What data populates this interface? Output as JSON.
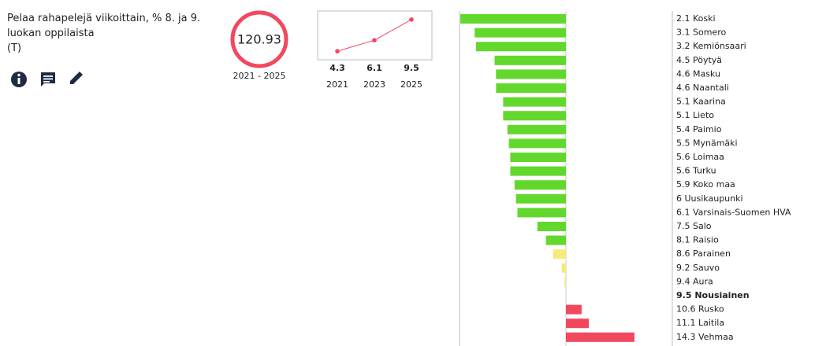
{
  "header": {
    "title": "Pelaa rahapelejä viikoittain, % 8. ja 9. luokan oppilaista",
    "subtitle": "(T)"
  },
  "indicator": {
    "value": 120.93,
    "period": "2021 - 2025",
    "color": "#f2485f"
  },
  "chart_data": [
    {
      "type": "line",
      "categories": [
        "2021",
        "2023",
        "2025"
      ],
      "values": [
        4.3,
        6.1,
        9.5
      ],
      "color": "#f2485f",
      "ylim": [
        2.9,
        10.9
      ]
    },
    {
      "type": "deviation-bar",
      "categories": [
        "Koski",
        "Somero",
        "Kemiönsaari",
        "Pöytyä",
        "Masku",
        "Naantali",
        "Kaarina",
        "Lieto",
        "Paimio",
        "Mynämäki",
        "Loimaa",
        "Turku",
        "Koko maa",
        "Uusikaupunki",
        "Varsinais-Suomen HVA",
        "Salo",
        "Raisio",
        "Parainen",
        "Sauvo",
        "Aura",
        "Nousiainen",
        "Rusko",
        "Laitila",
        "Vehmaa"
      ],
      "values": [
        2.1,
        3.1,
        3.2,
        4.5,
        4.6,
        4.6,
        5.1,
        5.1,
        5.4,
        5.5,
        5.6,
        5.6,
        5.9,
        6,
        6.1,
        7.5,
        8.1,
        8.6,
        9.2,
        9.4,
        9.5,
        10.6,
        11.1,
        14.3
      ],
      "colors": [
        "#63d82c",
        "#63d82c",
        "#63d82c",
        "#63d82c",
        "#63d82c",
        "#63d82c",
        "#63d82c",
        "#63d82c",
        "#63d82c",
        "#63d82c",
        "#63d82c",
        "#63d82c",
        "#63d82c",
        "#63d82c",
        "#63d82c",
        "#63d82c",
        "#63d82c",
        "#f6ea7c",
        "#f6ea7c",
        "#f6ea7c",
        "#f6ea7c",
        "#f2485f",
        "#f2485f",
        "#f2485f"
      ],
      "highlight_index": 20
    }
  ]
}
